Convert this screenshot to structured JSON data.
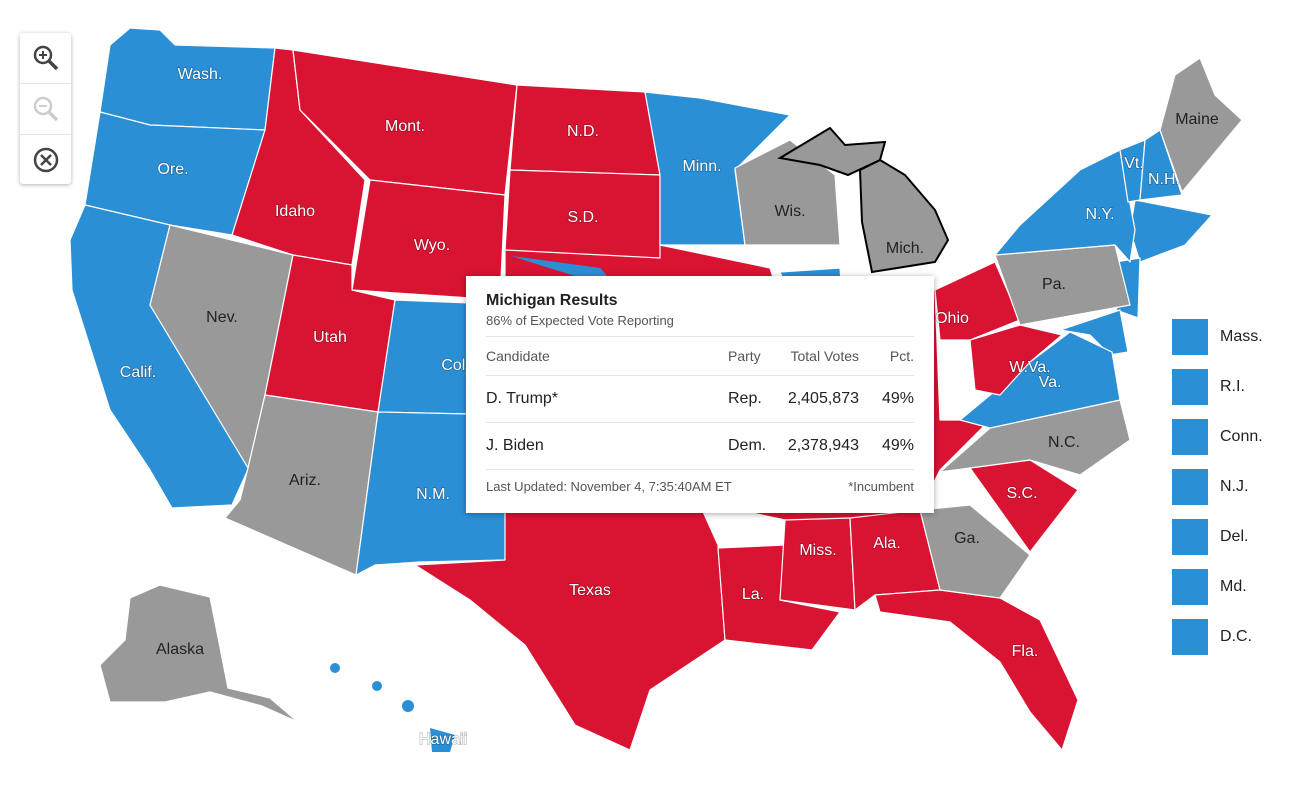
{
  "states": [
    {
      "label": "Wash.",
      "color": "#2b8fd6"
    },
    {
      "label": "Ore.",
      "color": "#2b8fd6"
    },
    {
      "label": "Calif.",
      "color": "#2b8fd6"
    },
    {
      "label": "Nev.",
      "color": "#999999"
    },
    {
      "label": "Idaho",
      "color": "#d91332"
    },
    {
      "label": "Mont.",
      "color": "#d91332"
    },
    {
      "label": "Wyo.",
      "color": "#d91332"
    },
    {
      "label": "Utah",
      "color": "#d91332"
    },
    {
      "label": "Ariz.",
      "color": "#999999"
    },
    {
      "label": "Colo.",
      "color": "#2b8fd6"
    },
    {
      "label": "N.M.",
      "color": "#2b8fd6"
    },
    {
      "label": "N.D.",
      "color": "#d91332"
    },
    {
      "label": "S.D.",
      "color": "#d91332"
    },
    {
      "label": "Minn.",
      "color": "#2b8fd6"
    },
    {
      "label": "Wis.",
      "color": "#999999"
    },
    {
      "label": "Mich.",
      "color": "#999999"
    },
    {
      "label": "Texas",
      "color": "#d91332"
    },
    {
      "label": "La.",
      "color": "#d91332"
    },
    {
      "label": "Miss.",
      "color": "#d91332"
    },
    {
      "label": "Ala.",
      "color": "#d91332"
    },
    {
      "label": "Fla.",
      "color": "#d91332"
    },
    {
      "label": "Ga.",
      "color": "#999999"
    },
    {
      "label": "S.C.",
      "color": "#d91332"
    },
    {
      "label": "N.C.",
      "color": "#999999"
    },
    {
      "label": "Va.",
      "color": "#2b8fd6"
    },
    {
      "label": "W.Va.",
      "color": "#d91332"
    },
    {
      "label": "Ohio",
      "color": "#d91332"
    },
    {
      "label": "Pa.",
      "color": "#999999"
    },
    {
      "label": "N.Y.",
      "color": "#2b8fd6"
    },
    {
      "label": "Vt.",
      "color": "#2b8fd6"
    },
    {
      "label": "N.H.",
      "color": "#2b8fd6"
    },
    {
      "label": "Maine",
      "color": "#999999"
    },
    {
      "label": "Alaska",
      "color": "#999999"
    },
    {
      "label": "Hawaii",
      "color": "#2b8fd6"
    }
  ],
  "small_states": [
    {
      "label": "Mass.",
      "color": "#2b8fd6"
    },
    {
      "label": "R.I.",
      "color": "#2b8fd6"
    },
    {
      "label": "Conn.",
      "color": "#2b8fd6"
    },
    {
      "label": "N.J.",
      "color": "#2b8fd6"
    },
    {
      "label": "Del.",
      "color": "#2b8fd6"
    },
    {
      "label": "Md.",
      "color": "#2b8fd6"
    },
    {
      "label": "D.C.",
      "color": "#2b8fd6"
    }
  ],
  "tooltip": {
    "title": "Michigan Results",
    "subtitle": "86% of Expected Vote Reporting",
    "columns": [
      "Candidate",
      "Party",
      "Total Votes",
      "Pct."
    ],
    "rows": [
      [
        "D. Trump*",
        "Rep.",
        "2,405,873",
        "49%"
      ],
      [
        "J. Biden",
        "Dem.",
        "2,378,943",
        "49%"
      ]
    ],
    "footer": "Last Updated: November 4, 7:35:40AM ET",
    "note": "*Incumbent"
  }
}
